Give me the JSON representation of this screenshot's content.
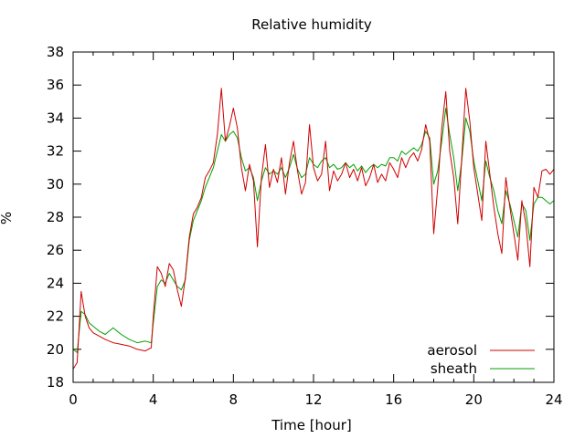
{
  "chart_data": {
    "type": "line",
    "title": "Relative humidity",
    "xlabel": "Time [hour]",
    "ylabel": "%",
    "xlim": [
      0,
      24
    ],
    "ylim": [
      18,
      38
    ],
    "xticks": [
      "0",
      "4",
      "8",
      "12",
      "16",
      "20",
      "24"
    ],
    "yticks": [
      "18",
      "20",
      "22",
      "24",
      "26",
      "28",
      "30",
      "32",
      "34",
      "36",
      "38"
    ],
    "grid": false,
    "legend_position": "bottom-right",
    "series": [
      {
        "name": "aerosol",
        "color": "#d00000",
        "x": [
          0,
          0.2,
          0.4,
          0.6,
          0.8,
          1.0,
          1.3,
          1.6,
          2.0,
          2.4,
          2.8,
          3.2,
          3.6,
          3.9,
          4.0,
          4.2,
          4.4,
          4.6,
          4.8,
          5.0,
          5.2,
          5.4,
          5.6,
          5.8,
          6.0,
          6.2,
          6.4,
          6.6,
          6.8,
          7.0,
          7.2,
          7.4,
          7.6,
          7.8,
          8.0,
          8.2,
          8.4,
          8.6,
          8.8,
          9.0,
          9.2,
          9.4,
          9.6,
          9.8,
          10.0,
          10.2,
          10.4,
          10.6,
          10.8,
          11.0,
          11.2,
          11.4,
          11.6,
          11.8,
          12.0,
          12.2,
          12.4,
          12.6,
          12.8,
          13.0,
          13.2,
          13.4,
          13.6,
          13.8,
          14.0,
          14.2,
          14.4,
          14.6,
          14.8,
          15.0,
          15.2,
          15.4,
          15.6,
          15.8,
          16.0,
          16.2,
          16.4,
          16.6,
          16.8,
          17.0,
          17.2,
          17.4,
          17.6,
          17.8,
          18.0,
          18.2,
          18.4,
          18.6,
          18.8,
          19.0,
          19.2,
          19.4,
          19.6,
          19.8,
          20.0,
          20.2,
          20.4,
          20.6,
          20.8,
          21.0,
          21.2,
          21.4,
          21.6,
          21.8,
          22.0,
          22.2,
          22.4,
          22.6,
          22.8,
          23.0,
          23.2,
          23.4,
          23.6,
          23.8,
          24.0
        ],
        "values": [
          18.8,
          19.2,
          23.5,
          22.0,
          21.3,
          21.0,
          20.8,
          20.6,
          20.4,
          20.3,
          20.2,
          20.0,
          19.9,
          20.1,
          22.0,
          25.0,
          24.6,
          23.8,
          25.2,
          24.8,
          23.6,
          22.6,
          24.3,
          26.8,
          28.2,
          28.6,
          29.2,
          30.4,
          30.8,
          31.3,
          33.0,
          35.8,
          32.6,
          33.5,
          34.6,
          33.4,
          31.0,
          29.6,
          31.2,
          30.2,
          26.2,
          30.4,
          32.4,
          29.8,
          30.9,
          30.1,
          31.6,
          29.4,
          31.3,
          32.6,
          30.8,
          29.4,
          30.1,
          33.6,
          31.0,
          30.2,
          30.6,
          32.6,
          29.6,
          30.8,
          30.2,
          30.6,
          31.3,
          30.4,
          30.9,
          30.2,
          31.0,
          29.9,
          30.4,
          31.2,
          30.1,
          30.6,
          30.2,
          31.3,
          30.9,
          30.4,
          31.6,
          31.0,
          31.6,
          31.9,
          31.4,
          32.1,
          33.6,
          32.6,
          27.0,
          29.8,
          33.4,
          35.6,
          32.0,
          30.4,
          27.6,
          31.6,
          35.8,
          33.8,
          31.0,
          29.4,
          27.8,
          32.6,
          30.6,
          28.6,
          27.0,
          25.8,
          30.4,
          28.6,
          27.0,
          25.4,
          29.0,
          27.6,
          25.0,
          29.8,
          29.2,
          30.8,
          30.9,
          30.6,
          30.9
        ]
      },
      {
        "name": "sheath",
        "color": "#00a000",
        "x": [
          0,
          0.2,
          0.4,
          0.6,
          0.8,
          1.0,
          1.3,
          1.6,
          2.0,
          2.4,
          2.8,
          3.2,
          3.6,
          3.9,
          4.0,
          4.2,
          4.4,
          4.6,
          4.8,
          5.0,
          5.2,
          5.4,
          5.6,
          5.8,
          6.0,
          6.2,
          6.4,
          6.6,
          6.8,
          7.0,
          7.2,
          7.4,
          7.6,
          7.8,
          8.0,
          8.2,
          8.4,
          8.6,
          8.8,
          9.0,
          9.2,
          9.4,
          9.6,
          9.8,
          10.0,
          10.2,
          10.4,
          10.6,
          10.8,
          11.0,
          11.2,
          11.4,
          11.6,
          11.8,
          12.0,
          12.2,
          12.4,
          12.6,
          12.8,
          13.0,
          13.2,
          13.4,
          13.6,
          13.8,
          14.0,
          14.2,
          14.4,
          14.6,
          14.8,
          15.0,
          15.2,
          15.4,
          15.6,
          15.8,
          16.0,
          16.2,
          16.4,
          16.6,
          16.8,
          17.0,
          17.2,
          17.4,
          17.6,
          17.8,
          18.0,
          18.2,
          18.4,
          18.6,
          18.8,
          19.0,
          19.2,
          19.4,
          19.6,
          19.8,
          20.0,
          20.2,
          20.4,
          20.6,
          20.8,
          21.0,
          21.2,
          21.4,
          21.6,
          21.8,
          22.0,
          22.2,
          22.4,
          22.6,
          22.8,
          23.0,
          23.2,
          23.4,
          23.6,
          23.8,
          24.0
        ],
        "values": [
          20.0,
          19.8,
          22.3,
          22.1,
          21.6,
          21.4,
          21.1,
          20.9,
          21.3,
          20.9,
          20.6,
          20.4,
          20.5,
          20.4,
          21.6,
          23.8,
          24.2,
          24.0,
          24.6,
          24.2,
          23.8,
          23.6,
          24.2,
          26.6,
          27.8,
          28.4,
          29.0,
          29.8,
          30.4,
          31.0,
          32.0,
          33.0,
          32.6,
          33.0,
          33.2,
          32.8,
          31.6,
          30.8,
          31.0,
          30.4,
          29.0,
          30.2,
          31.0,
          30.6,
          30.8,
          30.6,
          31.0,
          30.4,
          31.0,
          31.8,
          30.9,
          30.4,
          30.6,
          31.6,
          31.2,
          31.0,
          31.4,
          31.6,
          31.0,
          31.2,
          30.9,
          31.0,
          31.3,
          31.0,
          31.2,
          30.8,
          31.1,
          30.7,
          31.0,
          31.2,
          31.0,
          31.2,
          31.1,
          31.6,
          31.6,
          31.4,
          32.0,
          31.8,
          32.0,
          32.2,
          32.0,
          32.4,
          33.2,
          32.8,
          30.0,
          30.8,
          32.6,
          34.6,
          33.0,
          31.6,
          29.6,
          31.4,
          34.0,
          33.2,
          31.4,
          30.2,
          29.0,
          31.4,
          30.4,
          29.6,
          28.4,
          27.6,
          29.6,
          28.8,
          27.8,
          26.8,
          28.8,
          28.4,
          26.6,
          28.8,
          29.2,
          29.2,
          29.0,
          28.8,
          29.0
        ]
      }
    ]
  }
}
